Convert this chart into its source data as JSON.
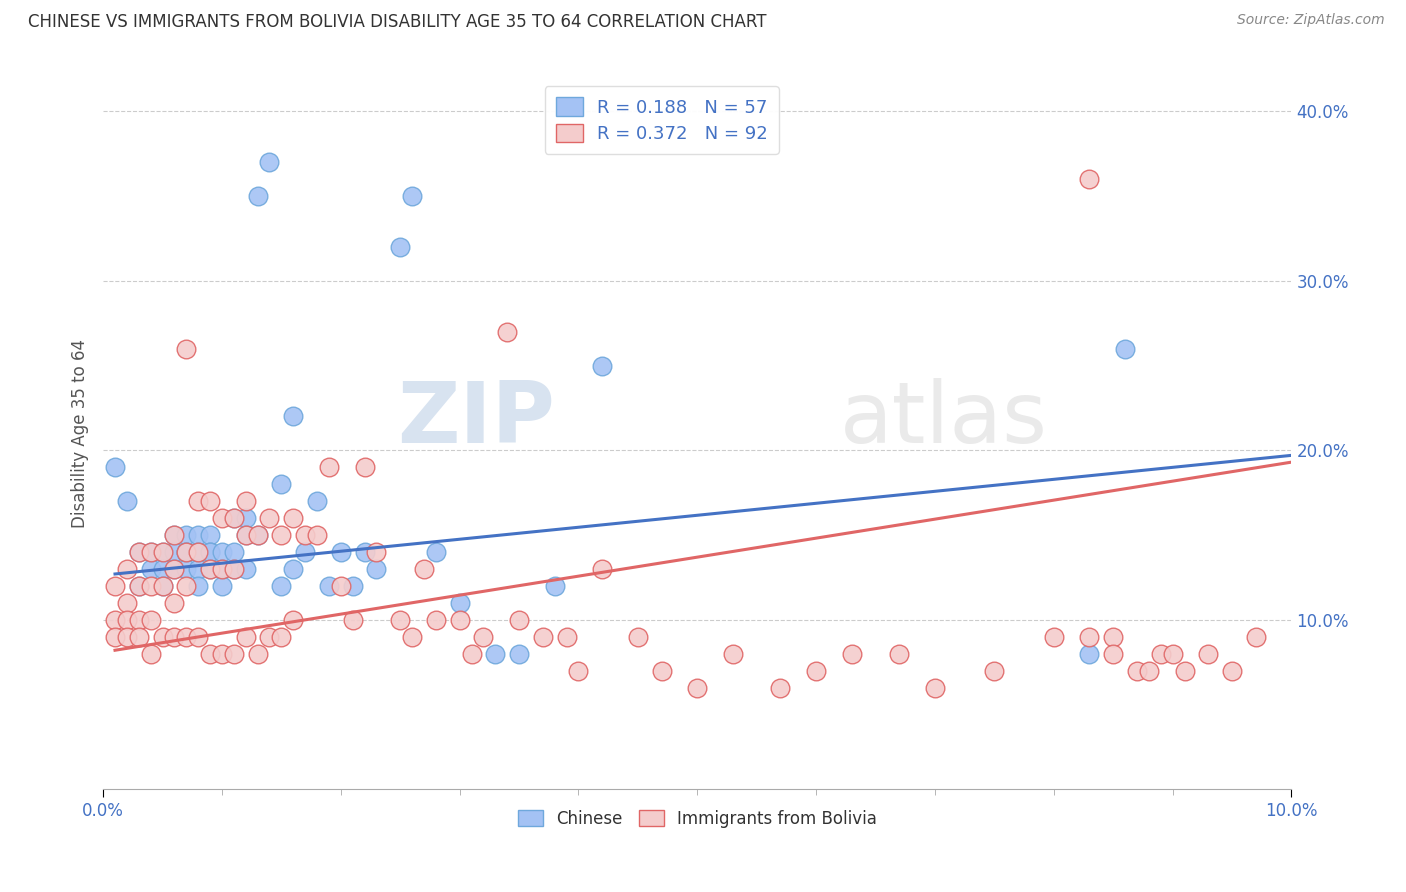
{
  "title": "CHINESE VS IMMIGRANTS FROM BOLIVIA DISABILITY AGE 35 TO 64 CORRELATION CHART",
  "source": "Source: ZipAtlas.com",
  "ylabel": "Disability Age 35 to 64",
  "xlim": [
    0.0,
    0.1
  ],
  "ylim": [
    0.0,
    0.42
  ],
  "xtick_positions": [
    0.0,
    0.1
  ],
  "xtick_labels": [
    "0.0%",
    "10.0%"
  ],
  "ytick_positions": [
    0.1,
    0.2,
    0.3,
    0.4
  ],
  "ytick_labels": [
    "10.0%",
    "20.0%",
    "30.0%",
    "40.0%"
  ],
  "chinese_R": 0.188,
  "chinese_N": 57,
  "bolivia_R": 0.372,
  "bolivia_N": 92,
  "chinese_color": "#a4c2f4",
  "chinese_edge_color": "#6fa8dc",
  "bolivia_color": "#f4cccc",
  "bolivia_edge_color": "#e06666",
  "chinese_line_color": "#4472c4",
  "bolivia_line_color": "#e06666",
  "tick_color": "#4472c4",
  "watermark": "ZIPatlas",
  "background_color": "#ffffff",
  "legend_label_chinese": "Chinese",
  "legend_label_bolivia": "Immigrants from Bolivia",
  "chinese_x": [
    0.001,
    0.002,
    0.003,
    0.003,
    0.004,
    0.004,
    0.005,
    0.005,
    0.005,
    0.006,
    0.006,
    0.006,
    0.007,
    0.007,
    0.007,
    0.007,
    0.008,
    0.008,
    0.008,
    0.008,
    0.009,
    0.009,
    0.009,
    0.009,
    0.01,
    0.01,
    0.01,
    0.011,
    0.011,
    0.011,
    0.012,
    0.012,
    0.012,
    0.013,
    0.013,
    0.014,
    0.015,
    0.015,
    0.016,
    0.016,
    0.017,
    0.018,
    0.019,
    0.02,
    0.021,
    0.022,
    0.023,
    0.025,
    0.026,
    0.028,
    0.03,
    0.033,
    0.035,
    0.038,
    0.042,
    0.083,
    0.086
  ],
  "chinese_y": [
    0.19,
    0.17,
    0.14,
    0.12,
    0.14,
    0.13,
    0.14,
    0.13,
    0.12,
    0.15,
    0.14,
    0.13,
    0.15,
    0.14,
    0.14,
    0.13,
    0.15,
    0.14,
    0.13,
    0.12,
    0.15,
    0.14,
    0.14,
    0.13,
    0.14,
    0.13,
    0.12,
    0.16,
    0.14,
    0.13,
    0.16,
    0.15,
    0.13,
    0.35,
    0.15,
    0.37,
    0.18,
    0.12,
    0.22,
    0.13,
    0.14,
    0.17,
    0.12,
    0.14,
    0.12,
    0.14,
    0.13,
    0.32,
    0.35,
    0.14,
    0.11,
    0.08,
    0.08,
    0.12,
    0.25,
    0.08,
    0.26
  ],
  "bolivia_x": [
    0.001,
    0.001,
    0.001,
    0.002,
    0.002,
    0.002,
    0.002,
    0.003,
    0.003,
    0.003,
    0.003,
    0.004,
    0.004,
    0.004,
    0.004,
    0.005,
    0.005,
    0.005,
    0.006,
    0.006,
    0.006,
    0.006,
    0.007,
    0.007,
    0.007,
    0.007,
    0.008,
    0.008,
    0.008,
    0.009,
    0.009,
    0.009,
    0.01,
    0.01,
    0.01,
    0.011,
    0.011,
    0.011,
    0.012,
    0.012,
    0.012,
    0.013,
    0.013,
    0.014,
    0.014,
    0.015,
    0.015,
    0.016,
    0.016,
    0.017,
    0.018,
    0.019,
    0.02,
    0.021,
    0.022,
    0.023,
    0.025,
    0.026,
    0.027,
    0.028,
    0.03,
    0.031,
    0.032,
    0.034,
    0.035,
    0.037,
    0.039,
    0.04,
    0.042,
    0.045,
    0.047,
    0.05,
    0.053,
    0.057,
    0.06,
    0.063,
    0.067,
    0.07,
    0.075,
    0.08,
    0.083,
    0.085,
    0.087,
    0.089,
    0.091,
    0.093,
    0.095,
    0.097,
    0.083,
    0.085,
    0.088,
    0.09
  ],
  "bolivia_y": [
    0.12,
    0.1,
    0.09,
    0.13,
    0.11,
    0.1,
    0.09,
    0.14,
    0.12,
    0.1,
    0.09,
    0.14,
    0.12,
    0.1,
    0.08,
    0.14,
    0.12,
    0.09,
    0.15,
    0.13,
    0.11,
    0.09,
    0.26,
    0.14,
    0.12,
    0.09,
    0.17,
    0.14,
    0.09,
    0.17,
    0.13,
    0.08,
    0.16,
    0.13,
    0.08,
    0.16,
    0.13,
    0.08,
    0.17,
    0.15,
    0.09,
    0.15,
    0.08,
    0.16,
    0.09,
    0.15,
    0.09,
    0.16,
    0.1,
    0.15,
    0.15,
    0.19,
    0.12,
    0.1,
    0.19,
    0.14,
    0.1,
    0.09,
    0.13,
    0.1,
    0.1,
    0.08,
    0.09,
    0.27,
    0.1,
    0.09,
    0.09,
    0.07,
    0.13,
    0.09,
    0.07,
    0.06,
    0.08,
    0.06,
    0.07,
    0.08,
    0.08,
    0.06,
    0.07,
    0.09,
    0.36,
    0.09,
    0.07,
    0.08,
    0.07,
    0.08,
    0.07,
    0.09,
    0.09,
    0.08,
    0.07,
    0.08
  ],
  "chinese_line_x": [
    0.001,
    0.1
  ],
  "chinese_line_y": [
    0.127,
    0.197
  ],
  "bolivia_line_x": [
    0.001,
    0.1
  ],
  "bolivia_line_y": [
    0.082,
    0.193
  ]
}
